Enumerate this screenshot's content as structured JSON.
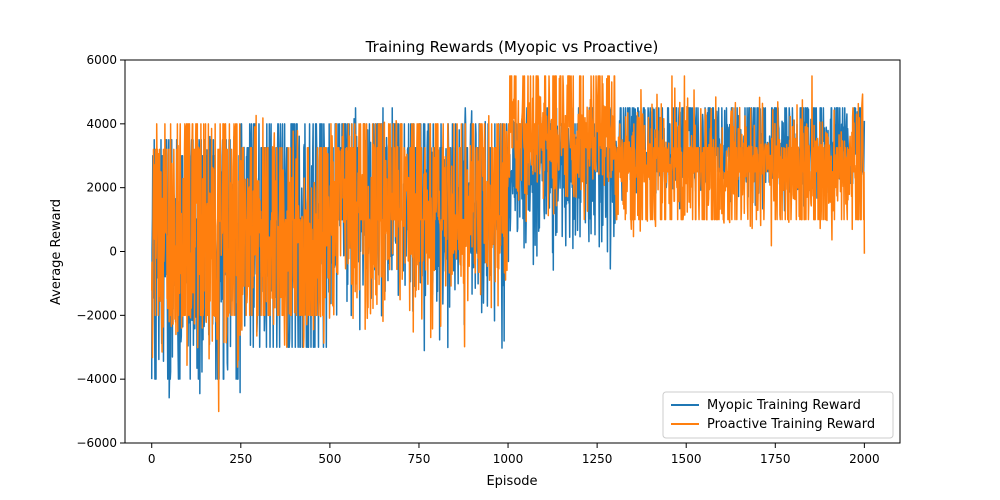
{
  "chart_data": {
    "type": "line",
    "title": "Training Rewards (Myopic vs Proactive)",
    "xlabel": "Episode",
    "ylabel": "Average Reward",
    "xlim": [
      -75,
      2100
    ],
    "ylim": [
      -6000,
      6000
    ],
    "xticks": [
      0,
      250,
      500,
      750,
      1000,
      1250,
      1500,
      1750,
      2000
    ],
    "yticks": [
      -6000,
      -4000,
      -2000,
      0,
      2000,
      4000,
      6000
    ],
    "grid": false,
    "legend_position": "lower-right",
    "series": [
      {
        "name": "Myopic Training Reward",
        "color": "#1f77b4",
        "levels": [
          {
            "until": 250,
            "mean": -500,
            "spread": 3600,
            "min": -4800,
            "max": 3600,
            "stick": [
              -4000,
              3500,
              3000
            ]
          },
          {
            "until": 500,
            "mean": 500,
            "spread": 3300,
            "min": -4200,
            "max": 4000,
            "stick": [
              3250,
              4000,
              -3000
            ]
          },
          {
            "until": 1000,
            "mean": 1000,
            "spread": 3200,
            "min": -4000,
            "max": 4500,
            "stick": [
              3250,
              4000,
              1000
            ]
          },
          {
            "until": 1300,
            "mean": 2200,
            "spread": 2800,
            "min": -700,
            "max": 4500,
            "stick": [
              3250,
              4000,
              2500
            ]
          },
          {
            "until": 2000,
            "mean": 3200,
            "spread": 1600,
            "min": 1000,
            "max": 4500,
            "stick": [
              3250,
              4500,
              2500
            ]
          }
        ]
      },
      {
        "name": "Proactive Training Reward",
        "color": "#ff7f0e",
        "levels": [
          {
            "until": 250,
            "mean": -300,
            "spread": 3800,
            "min": -5500,
            "max": 5200,
            "stick": [
              -2000,
              3200,
              4000
            ]
          },
          {
            "until": 500,
            "mean": 500,
            "spread": 3000,
            "min": -3000,
            "max": 5200,
            "stick": [
              3250,
              1000,
              -2000
            ]
          },
          {
            "until": 1000,
            "mean": 900,
            "spread": 3000,
            "min": -3000,
            "max": 5200,
            "stick": [
              3250,
              1000,
              4000
            ]
          },
          {
            "until": 1300,
            "mean": 3500,
            "spread": 2200,
            "min": -2700,
            "max": 5500,
            "stick": [
              4000,
              5500,
              3250
            ]
          },
          {
            "until": 2000,
            "mean": 2800,
            "spread": 2200,
            "min": -1400,
            "max": 5500,
            "stick": [
              3250,
              2500,
              1000
            ]
          }
        ]
      }
    ]
  }
}
